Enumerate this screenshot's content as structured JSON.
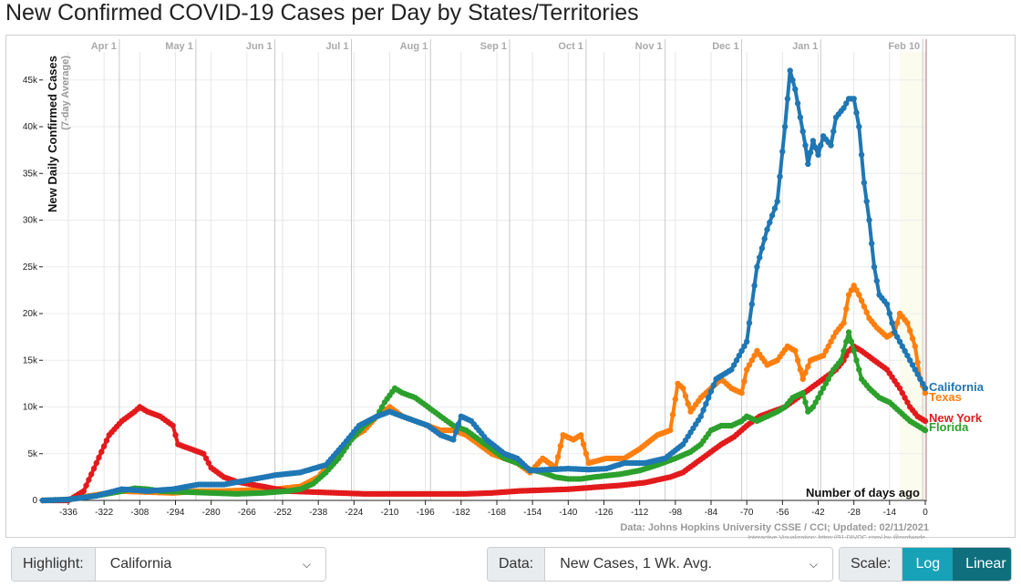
{
  "title": "New Confirmed COVID-19 Cases per Day by States/Territories",
  "chart_data": {
    "type": "line",
    "ylabel": "New Daily Confirmed Cases",
    "ylabel_sub": "(7-day Average)",
    "xlabel": "Number of days ago",
    "xlim": [
      -346,
      0
    ],
    "ylim": [
      0,
      48000
    ],
    "x_ticks": [
      -336,
      -322,
      -308,
      -294,
      -280,
      -266,
      -252,
      -238,
      -224,
      -210,
      -196,
      -182,
      -168,
      -154,
      -140,
      -126,
      -112,
      -98,
      -84,
      -70,
      -56,
      -42,
      -28,
      -14,
      0
    ],
    "y_ticks": [
      0,
      5000,
      10000,
      15000,
      20000,
      25000,
      30000,
      35000,
      40000,
      45000
    ],
    "y_tick_labels": [
      "0",
      "5k",
      "10k",
      "15k",
      "20k",
      "25k",
      "30k",
      "35k",
      "40k",
      "45k"
    ],
    "months": [
      {
        "label": "Apr 1",
        "x": -316
      },
      {
        "label": "May 1",
        "x": -286
      },
      {
        "label": "Jun 1",
        "x": -255
      },
      {
        "label": "Jul 1",
        "x": -225
      },
      {
        "label": "Aug 1",
        "x": -194
      },
      {
        "label": "Sep 1",
        "x": -163
      },
      {
        "label": "Oct 1",
        "x": -133
      },
      {
        "label": "Nov 1",
        "x": -102
      },
      {
        "label": "Dec 1",
        "x": -72
      },
      {
        "label": "Jan 1",
        "x": -41
      },
      {
        "label": "Feb 10",
        "x": -1
      }
    ],
    "grid": true,
    "source": "Data: Johns Hopkins University CSSE / CCI; Updated: 02/11/2021",
    "credit": "Interactive Visualization: https://91-DIVOC.com/ by @profwade_",
    "series": [
      {
        "name": "California",
        "color": "#1f77b4",
        "points": [
          [
            -346,
            0
          ],
          [
            -336,
            100
          ],
          [
            -325,
            500
          ],
          [
            -315,
            1200
          ],
          [
            -305,
            1000
          ],
          [
            -295,
            1200
          ],
          [
            -285,
            1700
          ],
          [
            -275,
            1700
          ],
          [
            -265,
            2200
          ],
          [
            -255,
            2700
          ],
          [
            -245,
            3000
          ],
          [
            -235,
            3800
          ],
          [
            -228,
            6000
          ],
          [
            -222,
            8000
          ],
          [
            -215,
            9000
          ],
          [
            -210,
            9500
          ],
          [
            -205,
            9000
          ],
          [
            -200,
            8500
          ],
          [
            -195,
            8000
          ],
          [
            -190,
            7000
          ],
          [
            -185,
            6500
          ],
          [
            -182,
            9000
          ],
          [
            -178,
            8500
          ],
          [
            -172,
            6500
          ],
          [
            -165,
            5000
          ],
          [
            -160,
            4500
          ],
          [
            -155,
            3200
          ],
          [
            -148,
            3300
          ],
          [
            -140,
            3400
          ],
          [
            -132,
            3300
          ],
          [
            -125,
            3400
          ],
          [
            -118,
            4000
          ],
          [
            -110,
            4000
          ],
          [
            -102,
            4500
          ],
          [
            -95,
            6000
          ],
          [
            -88,
            9000
          ],
          [
            -82,
            13000
          ],
          [
            -76,
            14000
          ],
          [
            -72,
            16000
          ],
          [
            -70,
            17000
          ],
          [
            -66,
            25000
          ],
          [
            -62,
            29000
          ],
          [
            -58,
            32000
          ],
          [
            -55,
            40000
          ],
          [
            -53,
            46000
          ],
          [
            -51,
            44000
          ],
          [
            -49,
            41000
          ],
          [
            -47,
            38000
          ],
          [
            -46,
            36000
          ],
          [
            -44,
            38500
          ],
          [
            -42,
            37000
          ],
          [
            -40,
            39000
          ],
          [
            -37,
            38000
          ],
          [
            -35,
            41000
          ],
          [
            -32,
            42000
          ],
          [
            -30,
            43000
          ],
          [
            -28,
            43000
          ],
          [
            -26,
            40000
          ],
          [
            -24,
            34000
          ],
          [
            -22,
            30000
          ],
          [
            -20,
            25000
          ],
          [
            -18,
            22000
          ],
          [
            -15,
            21000
          ],
          [
            -12,
            18000
          ],
          [
            -8,
            16000
          ],
          [
            -4,
            14000
          ],
          [
            0,
            12000
          ]
        ]
      },
      {
        "name": "Texas",
        "color": "#ff7f0e",
        "points": [
          [
            -346,
            0
          ],
          [
            -336,
            100
          ],
          [
            -325,
            600
          ],
          [
            -315,
            1000
          ],
          [
            -305,
            900
          ],
          [
            -295,
            800
          ],
          [
            -285,
            1000
          ],
          [
            -275,
            1000
          ],
          [
            -265,
            1100
          ],
          [
            -255,
            1200
          ],
          [
            -245,
            1500
          ],
          [
            -238,
            2500
          ],
          [
            -232,
            4500
          ],
          [
            -226,
            6500
          ],
          [
            -220,
            7500
          ],
          [
            -215,
            9000
          ],
          [
            -210,
            10000
          ],
          [
            -205,
            9000
          ],
          [
            -200,
            8500
          ],
          [
            -195,
            8000
          ],
          [
            -190,
            7500
          ],
          [
            -185,
            7500
          ],
          [
            -180,
            7000
          ],
          [
            -175,
            6000
          ],
          [
            -170,
            5000
          ],
          [
            -165,
            4500
          ],
          [
            -160,
            4000
          ],
          [
            -155,
            3000
          ],
          [
            -150,
            4500
          ],
          [
            -145,
            3500
          ],
          [
            -142,
            7000
          ],
          [
            -138,
            6500
          ],
          [
            -135,
            7000
          ],
          [
            -132,
            4000
          ],
          [
            -125,
            4500
          ],
          [
            -118,
            4500
          ],
          [
            -112,
            5500
          ],
          [
            -105,
            7000
          ],
          [
            -100,
            7500
          ],
          [
            -97,
            12500
          ],
          [
            -95,
            12000
          ],
          [
            -92,
            9500
          ],
          [
            -88,
            11000
          ],
          [
            -84,
            12000
          ],
          [
            -80,
            13000
          ],
          [
            -76,
            12000
          ],
          [
            -72,
            11500
          ],
          [
            -70,
            14000
          ],
          [
            -66,
            16000
          ],
          [
            -62,
            14500
          ],
          [
            -58,
            15000
          ],
          [
            -54,
            16500
          ],
          [
            -51,
            16000
          ],
          [
            -48,
            13000
          ],
          [
            -45,
            15000
          ],
          [
            -40,
            15500
          ],
          [
            -35,
            18000
          ],
          [
            -32,
            19000
          ],
          [
            -30,
            22000
          ],
          [
            -28,
            23000
          ],
          [
            -26,
            22000
          ],
          [
            -22,
            19500
          ],
          [
            -19,
            18500
          ],
          [
            -15,
            17500
          ],
          [
            -12,
            18000
          ],
          [
            -10,
            20000
          ],
          [
            -7,
            19000
          ],
          [
            -4,
            16500
          ],
          [
            -2,
            13000
          ],
          [
            0,
            11500
          ]
        ]
      },
      {
        "name": "New York",
        "color": "#e31a1c",
        "points": [
          [
            -346,
            0
          ],
          [
            -336,
            0
          ],
          [
            -330,
            1000
          ],
          [
            -325,
            4000
          ],
          [
            -320,
            7000
          ],
          [
            -315,
            8500
          ],
          [
            -310,
            9500
          ],
          [
            -308,
            10000
          ],
          [
            -305,
            9500
          ],
          [
            -300,
            9000
          ],
          [
            -295,
            8000
          ],
          [
            -293,
            6000
          ],
          [
            -288,
            5500
          ],
          [
            -283,
            5000
          ],
          [
            -280,
            3500
          ],
          [
            -275,
            2500
          ],
          [
            -270,
            2000
          ],
          [
            -260,
            1500
          ],
          [
            -250,
            1000
          ],
          [
            -240,
            900
          ],
          [
            -230,
            800
          ],
          [
            -220,
            700
          ],
          [
            -210,
            700
          ],
          [
            -200,
            700
          ],
          [
            -190,
            700
          ],
          [
            -180,
            700
          ],
          [
            -170,
            800
          ],
          [
            -160,
            1000
          ],
          [
            -150,
            1100
          ],
          [
            -140,
            1200
          ],
          [
            -130,
            1400
          ],
          [
            -120,
            1600
          ],
          [
            -110,
            1900
          ],
          [
            -100,
            2500
          ],
          [
            -95,
            3000
          ],
          [
            -90,
            4000
          ],
          [
            -85,
            5000
          ],
          [
            -80,
            6000
          ],
          [
            -75,
            6800
          ],
          [
            -70,
            8000
          ],
          [
            -65,
            9000
          ],
          [
            -60,
            9500
          ],
          [
            -55,
            10000
          ],
          [
            -50,
            11000
          ],
          [
            -45,
            12000
          ],
          [
            -40,
            13000
          ],
          [
            -35,
            14000
          ],
          [
            -32,
            15000
          ],
          [
            -30,
            16000
          ],
          [
            -28,
            16500
          ],
          [
            -25,
            16000
          ],
          [
            -20,
            15000
          ],
          [
            -15,
            14000
          ],
          [
            -10,
            12000
          ],
          [
            -6,
            10000
          ],
          [
            -3,
            9000
          ],
          [
            0,
            8500
          ]
        ]
      },
      {
        "name": "Florida",
        "color": "#2ca02c",
        "points": [
          [
            -346,
            0
          ],
          [
            -336,
            100
          ],
          [
            -325,
            500
          ],
          [
            -315,
            1000
          ],
          [
            -310,
            1300
          ],
          [
            -305,
            1200
          ],
          [
            -300,
            1000
          ],
          [
            -290,
            900
          ],
          [
            -280,
            800
          ],
          [
            -270,
            700
          ],
          [
            -260,
            800
          ],
          [
            -250,
            1000
          ],
          [
            -245,
            1200
          ],
          [
            -240,
            1800
          ],
          [
            -235,
            3000
          ],
          [
            -230,
            4500
          ],
          [
            -225,
            6500
          ],
          [
            -220,
            8000
          ],
          [
            -215,
            9000
          ],
          [
            -212,
            10500
          ],
          [
            -208,
            12000
          ],
          [
            -205,
            11500
          ],
          [
            -200,
            11000
          ],
          [
            -195,
            10000
          ],
          [
            -190,
            9000
          ],
          [
            -185,
            8000
          ],
          [
            -180,
            7500
          ],
          [
            -175,
            6500
          ],
          [
            -170,
            5500
          ],
          [
            -165,
            4500
          ],
          [
            -160,
            4000
          ],
          [
            -155,
            3300
          ],
          [
            -150,
            3000
          ],
          [
            -145,
            2500
          ],
          [
            -140,
            2300
          ],
          [
            -135,
            2300
          ],
          [
            -130,
            2500
          ],
          [
            -120,
            2800
          ],
          [
            -112,
            3200
          ],
          [
            -105,
            3800
          ],
          [
            -98,
            4500
          ],
          [
            -92,
            5200
          ],
          [
            -88,
            6000
          ],
          [
            -84,
            7500
          ],
          [
            -80,
            8000
          ],
          [
            -76,
            8000
          ],
          [
            -72,
            8500
          ],
          [
            -70,
            9000
          ],
          [
            -66,
            8500
          ],
          [
            -62,
            9000
          ],
          [
            -58,
            9500
          ],
          [
            -55,
            10000
          ],
          [
            -52,
            11000
          ],
          [
            -48,
            11500
          ],
          [
            -46,
            9500
          ],
          [
            -44,
            10000
          ],
          [
            -40,
            12000
          ],
          [
            -36,
            14000
          ],
          [
            -33,
            15000
          ],
          [
            -30,
            18000
          ],
          [
            -28,
            16000
          ],
          [
            -25,
            13000
          ],
          [
            -22,
            12000
          ],
          [
            -18,
            11000
          ],
          [
            -14,
            10500
          ],
          [
            -10,
            9500
          ],
          [
            -6,
            8500
          ],
          [
            -3,
            8000
          ],
          [
            0,
            7500
          ]
        ]
      }
    ]
  },
  "controls": {
    "highlight_label": "Highlight:",
    "highlight_value": "California",
    "data_label": "Data:",
    "data_value": "New Cases, 1 Wk. Avg.",
    "scale_label": "Scale:",
    "scale_log": "Log",
    "scale_linear": "Linear"
  }
}
